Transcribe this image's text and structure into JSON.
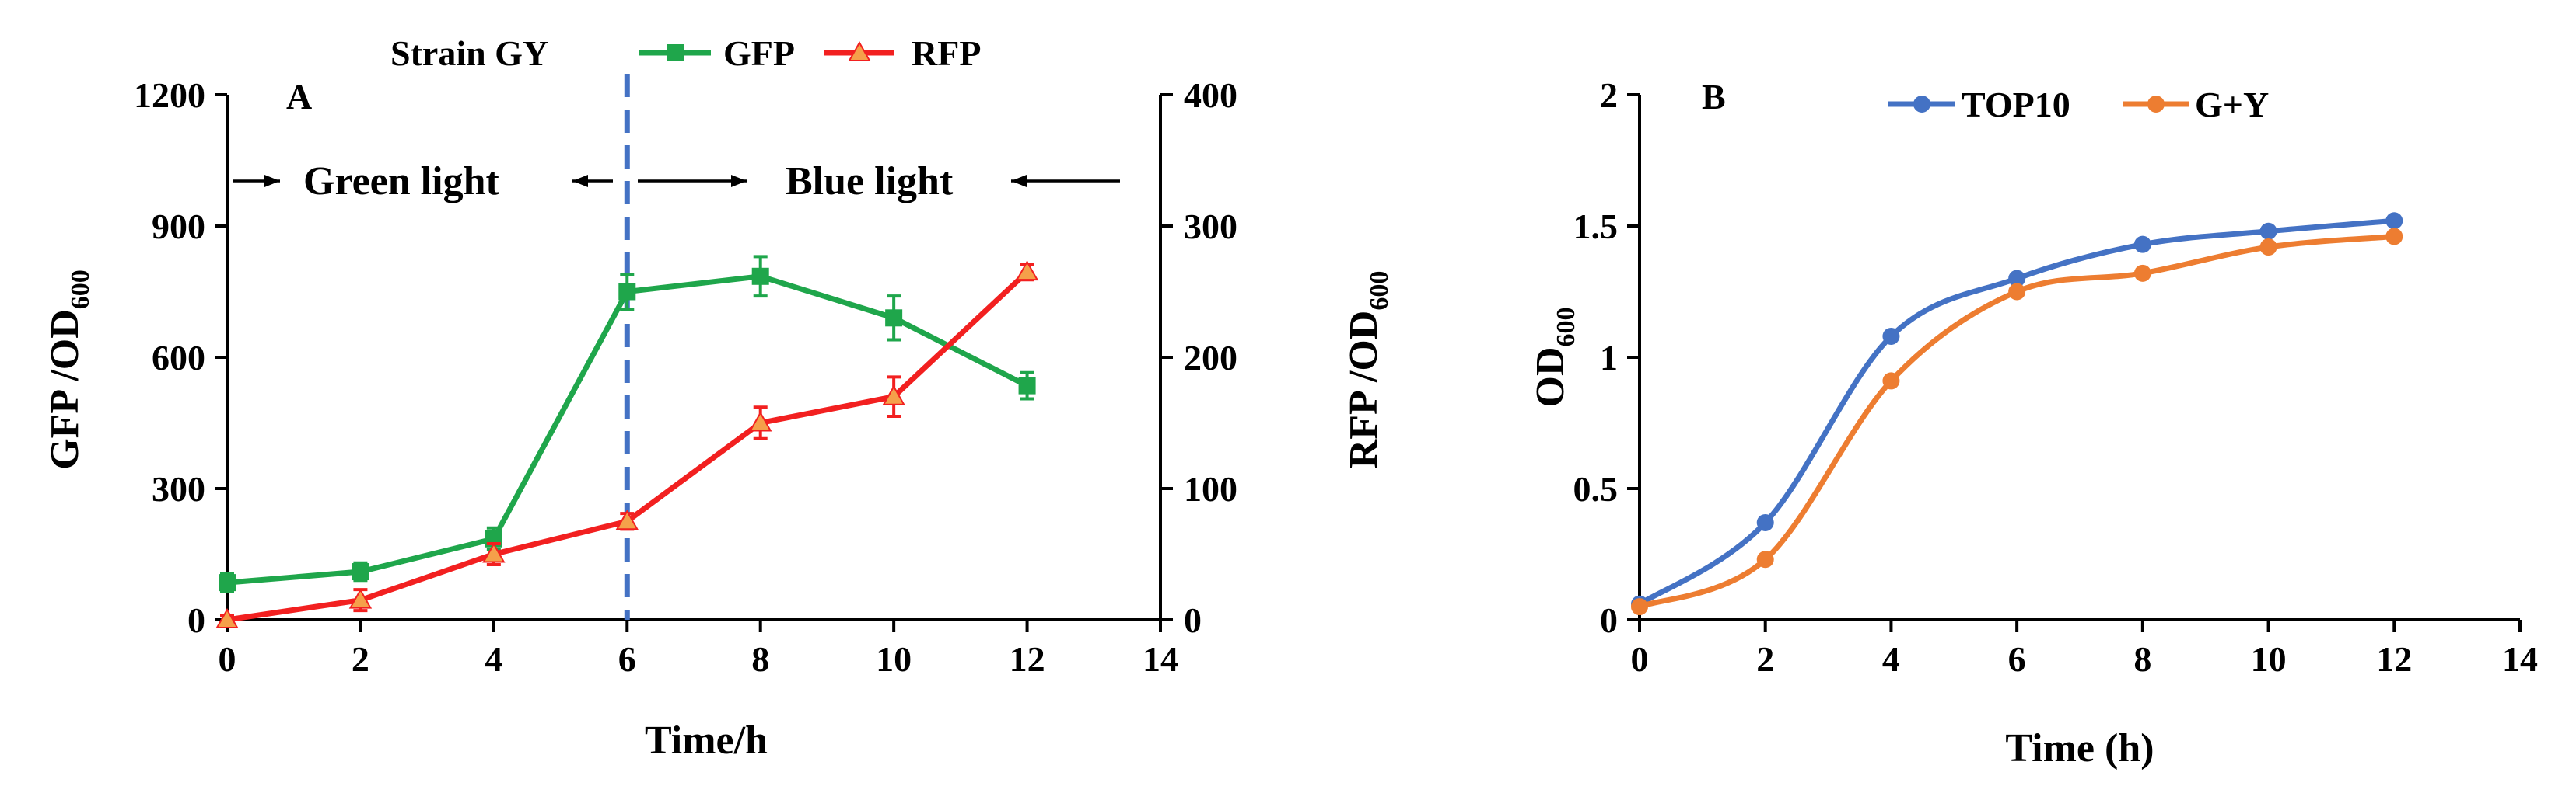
{
  "chart_data": [
    {
      "panel": "A",
      "type": "line",
      "title": "Strain GY",
      "x": [
        0,
        2,
        4,
        6,
        8,
        10,
        12
      ],
      "xlabel": "Time/h",
      "xlim": [
        0,
        14
      ],
      "xticks": [
        "0",
        "2",
        "4",
        "6",
        "8",
        "10",
        "12",
        "14"
      ],
      "ylabel": "GFP /OD",
      "ylabel_sub": "600",
      "ylim": [
        0,
        1200
      ],
      "yticks": [
        "0",
        "300",
        "600",
        "900",
        "1200"
      ],
      "y2label": "RFP /OD",
      "y2label_sub": "600",
      "y2lim": [
        0,
        400
      ],
      "y2ticks": [
        "0",
        "100",
        "200",
        "300",
        "400"
      ],
      "series": [
        {
          "name": "GFP",
          "axis": "left",
          "color": "#1FA64B",
          "marker": "square",
          "values": [
            85,
            110,
            185,
            750,
            785,
            690,
            535
          ],
          "errors": [
            20,
            20,
            25,
            40,
            45,
            50,
            30
          ]
        },
        {
          "name": "RFP",
          "axis": "right",
          "color": "#F22020",
          "marker": "triangle",
          "values": [
            0,
            15,
            50,
            75,
            150,
            170,
            265
          ],
          "errors": [
            3,
            8,
            8,
            6,
            12,
            15,
            6
          ]
        }
      ],
      "divider": {
        "x": 6,
        "color": "#4472C4",
        "style": "dashed"
      },
      "annotations": [
        {
          "text": "Green light",
          "from_x": 0,
          "to_x": 6
        },
        {
          "text": "Blue light",
          "from_x": 6,
          "to_x": 14
        }
      ],
      "legend_position": "top",
      "grid": false
    },
    {
      "panel": "B",
      "type": "line",
      "x": [
        0,
        2,
        4,
        6,
        8,
        10,
        12
      ],
      "xlabel": "Time (h)",
      "xlim": [
        0,
        14
      ],
      "xticks": [
        "0",
        "2",
        "4",
        "6",
        "8",
        "10",
        "12",
        "14"
      ],
      "ylabel": "OD",
      "ylabel_sub": "600",
      "ylim": [
        0,
        2
      ],
      "yticks": [
        "0",
        "0.5",
        "1",
        "1.5",
        "2"
      ],
      "series": [
        {
          "name": "TOP10",
          "color": "#4472C4",
          "marker": "circle",
          "values": [
            0.06,
            0.37,
            1.08,
            1.3,
            1.43,
            1.48,
            1.52
          ]
        },
        {
          "name": "G+Y",
          "color": "#ED7D31",
          "marker": "circle",
          "values": [
            0.05,
            0.23,
            0.91,
            1.25,
            1.32,
            1.42,
            1.46
          ]
        }
      ],
      "smooth": true,
      "legend_position": "top",
      "grid": false
    }
  ]
}
